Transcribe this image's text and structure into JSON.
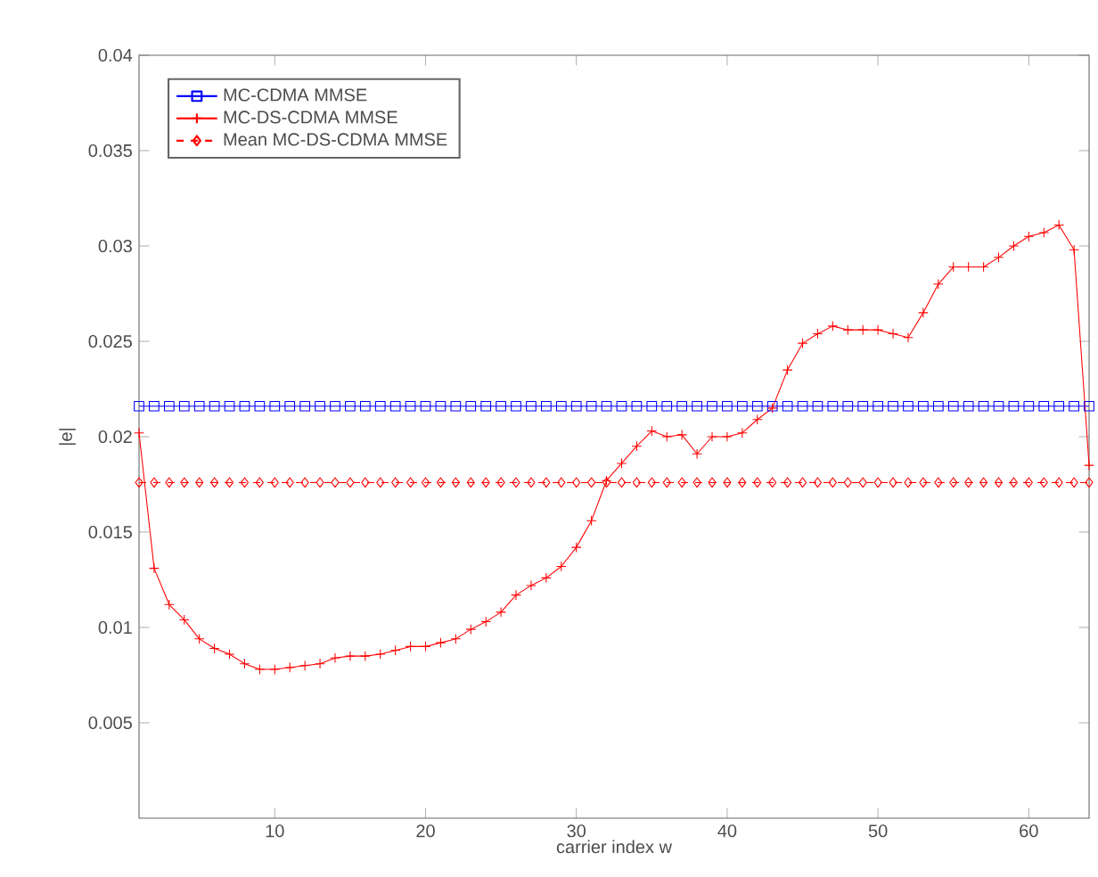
{
  "chart_data": {
    "type": "line",
    "xlabel": "carrier index w",
    "ylabel": "|e|",
    "x": [
      1,
      2,
      3,
      4,
      5,
      6,
      7,
      8,
      9,
      10,
      11,
      12,
      13,
      14,
      15,
      16,
      17,
      18,
      19,
      20,
      21,
      22,
      23,
      24,
      25,
      26,
      27,
      28,
      29,
      30,
      31,
      32,
      33,
      34,
      35,
      36,
      37,
      38,
      39,
      40,
      41,
      42,
      43,
      44,
      45,
      46,
      47,
      48,
      49,
      50,
      51,
      52,
      53,
      54,
      55,
      56,
      57,
      58,
      59,
      60,
      61,
      62,
      63,
      64
    ],
    "series": [
      {
        "name": "MC-CDMA MMSE",
        "color": "#0000ff",
        "marker": "square",
        "line_style": "solid",
        "values": [
          0.0216,
          0.0216,
          0.0216,
          0.0216,
          0.0216,
          0.0216,
          0.0216,
          0.0216,
          0.0216,
          0.0216,
          0.0216,
          0.0216,
          0.0216,
          0.0216,
          0.0216,
          0.0216,
          0.0216,
          0.0216,
          0.0216,
          0.0216,
          0.0216,
          0.0216,
          0.0216,
          0.0216,
          0.0216,
          0.0216,
          0.0216,
          0.0216,
          0.0216,
          0.0216,
          0.0216,
          0.0216,
          0.0216,
          0.0216,
          0.0216,
          0.0216,
          0.0216,
          0.0216,
          0.0216,
          0.0216,
          0.0216,
          0.0216,
          0.0216,
          0.0216,
          0.0216,
          0.0216,
          0.0216,
          0.0216,
          0.0216,
          0.0216,
          0.0216,
          0.0216,
          0.0216,
          0.0216,
          0.0216,
          0.0216,
          0.0216,
          0.0216,
          0.0216,
          0.0216,
          0.0216,
          0.0216,
          0.0216,
          0.0216
        ]
      },
      {
        "name": "MC-DS-CDMA MMSE",
        "color": "#ff0000",
        "marker": "cross",
        "line_style": "solid",
        "values": [
          0.0202,
          0.0131,
          0.0112,
          0.0104,
          0.0094,
          0.0089,
          0.0086,
          0.0081,
          0.0078,
          0.0078,
          0.0079,
          0.008,
          0.0081,
          0.0084,
          0.0085,
          0.0085,
          0.0086,
          0.0088,
          0.009,
          0.009,
          0.0092,
          0.0094,
          0.0099,
          0.0103,
          0.0108,
          0.0117,
          0.0122,
          0.0126,
          0.0132,
          0.0142,
          0.0156,
          0.0177,
          0.0186,
          0.0195,
          0.0203,
          0.02,
          0.0201,
          0.0191,
          0.02,
          0.02,
          0.0202,
          0.0209,
          0.0215,
          0.0235,
          0.0249,
          0.0254,
          0.0258,
          0.0256,
          0.0256,
          0.0256,
          0.0254,
          0.0252,
          0.0265,
          0.028,
          0.0289,
          0.0289,
          0.0289,
          0.0294,
          0.03,
          0.0305,
          0.0307,
          0.0311,
          0.0298,
          0.0185
        ]
      },
      {
        "name": "Mean MC-DS-CDMA MMSE",
        "color": "#ff0000",
        "marker": "diamond",
        "line_style": "dashed",
        "values": [
          0.0176,
          0.0176,
          0.0176,
          0.0176,
          0.0176,
          0.0176,
          0.0176,
          0.0176,
          0.0176,
          0.0176,
          0.0176,
          0.0176,
          0.0176,
          0.0176,
          0.0176,
          0.0176,
          0.0176,
          0.0176,
          0.0176,
          0.0176,
          0.0176,
          0.0176,
          0.0176,
          0.0176,
          0.0176,
          0.0176,
          0.0176,
          0.0176,
          0.0176,
          0.0176,
          0.0176,
          0.0176,
          0.0176,
          0.0176,
          0.0176,
          0.0176,
          0.0176,
          0.0176,
          0.0176,
          0.0176,
          0.0176,
          0.0176,
          0.0176,
          0.0176,
          0.0176,
          0.0176,
          0.0176,
          0.0176,
          0.0176,
          0.0176,
          0.0176,
          0.0176,
          0.0176,
          0.0176,
          0.0176,
          0.0176,
          0.0176,
          0.0176,
          0.0176,
          0.0176,
          0.0176,
          0.0176,
          0.0176,
          0.0176
        ]
      }
    ],
    "xlim": [
      1,
      64
    ],
    "xticks": [
      10,
      20,
      30,
      40,
      50,
      60
    ],
    "ylim": [
      0,
      0.04
    ],
    "yticks": [
      0.005,
      0.01,
      0.015,
      0.02,
      0.025,
      0.03,
      0.035,
      0.04
    ],
    "grid": false,
    "legend": "top left"
  }
}
